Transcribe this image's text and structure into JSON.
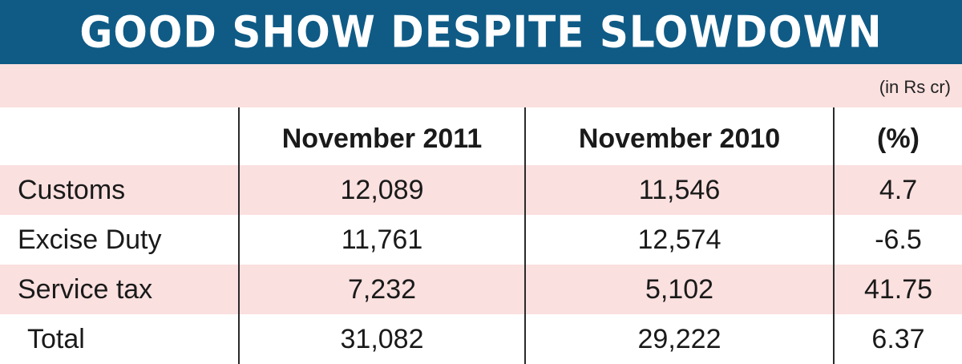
{
  "chart_data": {
    "type": "table",
    "title": "GOOD SHOW DESPITE SLOWDOWN",
    "unit": "(in Rs cr)",
    "columns": [
      "",
      "November 2011",
      "November 2010",
      "(%)"
    ],
    "rows": [
      {
        "label": "Customs",
        "nov_2011": "12,089",
        "nov_2010": "11,546",
        "pct": "4.7"
      },
      {
        "label": "Excise Duty",
        "nov_2011": "11,761",
        "nov_2010": "12,574",
        "pct": "-6.5"
      },
      {
        "label": "Service tax",
        "nov_2011": "7,232",
        "nov_2010": "5,102",
        "pct": "41.75"
      },
      {
        "label": "Total",
        "nov_2011": "31,082",
        "nov_2010": "29,222",
        "pct": "6.37"
      }
    ]
  },
  "colors": {
    "title_bg": "#0f5b86",
    "title_text": "#ffffff",
    "row_pink": "#fae0df",
    "divider": "#2a2a2a"
  }
}
